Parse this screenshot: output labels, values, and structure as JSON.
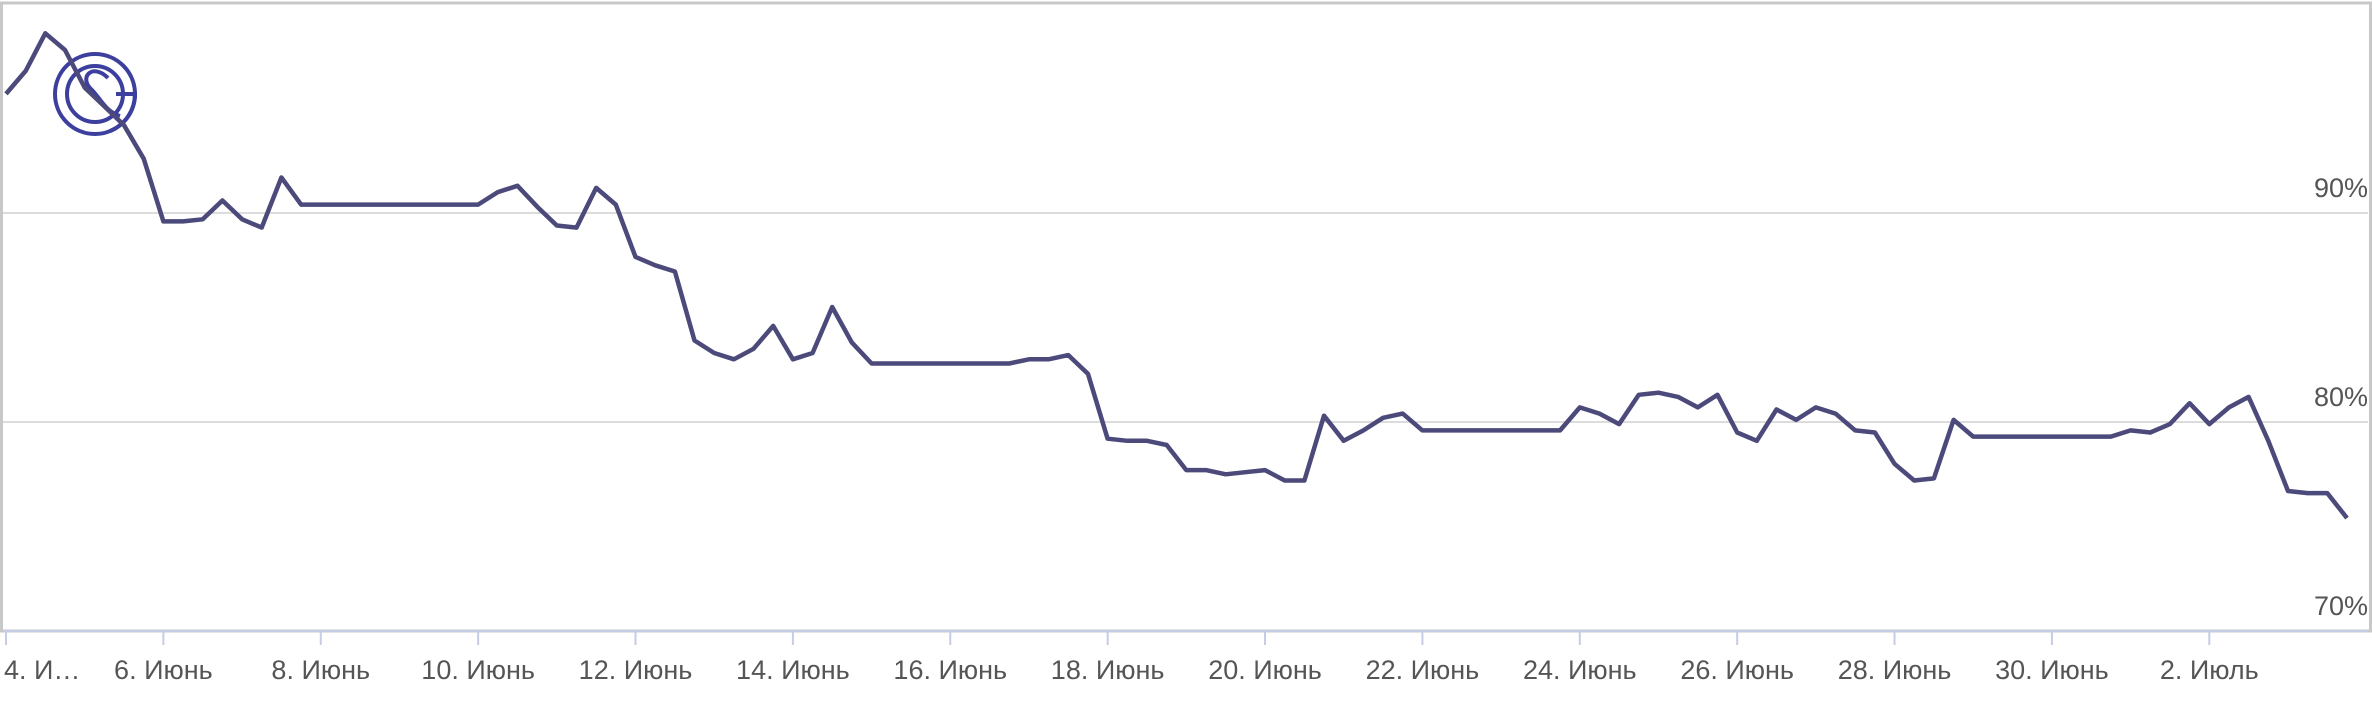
{
  "chart_data": {
    "type": "line",
    "categories": [
      "4. И…",
      null,
      null,
      null,
      null,
      null,
      null,
      null,
      "6. Июнь",
      null,
      null,
      null,
      null,
      null,
      null,
      null,
      "8. Июнь",
      null,
      null,
      null,
      null,
      null,
      null,
      null,
      "10. Июнь",
      null,
      null,
      null,
      null,
      null,
      null,
      null,
      "12. Июнь",
      null,
      null,
      null,
      null,
      null,
      null,
      null,
      "14. Июнь",
      null,
      null,
      null,
      null,
      null,
      null,
      null,
      "16. Июнь",
      null,
      null,
      null,
      null,
      null,
      null,
      null,
      "18. Июнь",
      null,
      null,
      null,
      null,
      null,
      null,
      null,
      "20. Июнь",
      null,
      null,
      null,
      null,
      null,
      null,
      null,
      "22. Июнь",
      null,
      null,
      null,
      null,
      null,
      null,
      null,
      "24. Июнь",
      null,
      null,
      null,
      null,
      null,
      null,
      null,
      "26. Июнь",
      null,
      null,
      null,
      null,
      null,
      null,
      null,
      "28. Июнь",
      null,
      null,
      null,
      null,
      null,
      null,
      null,
      "30. Июнь",
      null,
      null,
      null,
      null,
      null,
      null,
      null,
      "2. Июль",
      null,
      null,
      null,
      null,
      null,
      null,
      null
    ],
    "values": [
      95.7,
      96.8,
      98.6,
      97.8,
      96.0,
      95.1,
      94.2,
      92.6,
      89.6,
      89.6,
      89.7,
      90.6,
      89.7,
      89.3,
      91.7,
      90.4,
      90.4,
      90.4,
      90.4,
      90.4,
      90.4,
      90.4,
      90.4,
      90.4,
      90.4,
      91.0,
      91.3,
      90.3,
      89.4,
      89.3,
      91.2,
      90.4,
      87.9,
      87.5,
      87.2,
      83.9,
      83.3,
      83.0,
      83.5,
      84.6,
      83.0,
      83.3,
      85.5,
      83.8,
      82.8,
      82.8,
      82.8,
      82.8,
      82.8,
      82.8,
      82.8,
      82.8,
      83.0,
      83.0,
      83.2,
      82.3,
      79.2,
      79.1,
      79.1,
      78.9,
      77.7,
      77.7,
      77.5,
      77.6,
      77.7,
      77.2,
      77.2,
      80.3,
      79.1,
      79.6,
      80.2,
      80.4,
      79.6,
      79.6,
      79.6,
      79.6,
      79.6,
      79.6,
      79.6,
      79.6,
      80.7,
      80.4,
      79.9,
      81.3,
      81.4,
      81.2,
      80.7,
      81.3,
      79.5,
      79.1,
      80.6,
      80.1,
      80.7,
      80.4,
      79.6,
      79.5,
      78.0,
      77.2,
      77.3,
      80.1,
      79.3,
      79.3,
      79.3,
      79.3,
      79.3,
      79.3,
      79.3,
      79.3,
      79.6,
      79.5,
      79.9,
      80.9,
      79.9,
      80.7,
      81.2,
      79.1,
      76.7,
      76.6,
      76.6,
      75.4
    ],
    "color": "#4b4a7a",
    "ylim": [
      70,
      100
    ],
    "yticks": [
      {
        "value": 70,
        "label": "70%"
      },
      {
        "value": 80,
        "label": "80%"
      },
      {
        "value": 90,
        "label": "90%"
      }
    ],
    "grid": true
  }
}
